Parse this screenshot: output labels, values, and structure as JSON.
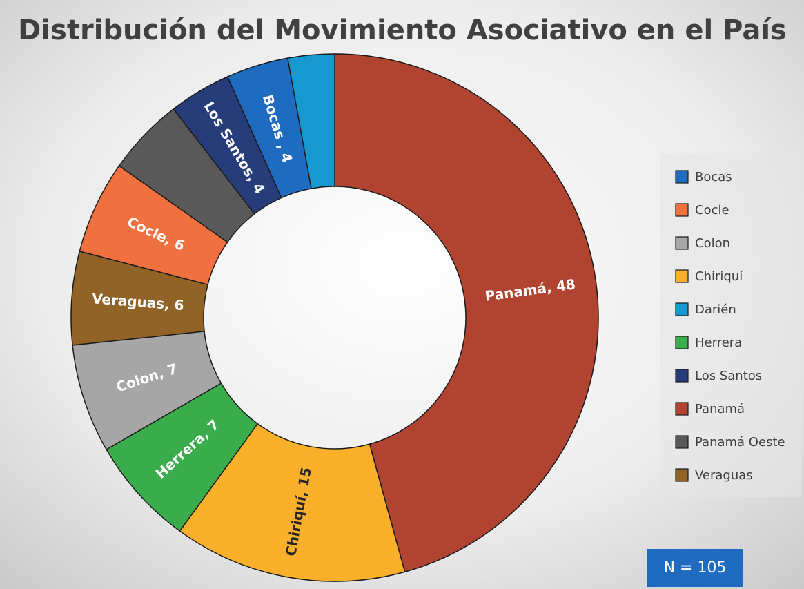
{
  "chart_data": {
    "type": "donut",
    "title": "Distribución del Movimiento Asociativo en el País",
    "categories": [
      "Panamá",
      "Chiriquí",
      "Herrera",
      "Colon",
      "Veraguas",
      "Cocle",
      "Panamá Oeste",
      "Los Santos",
      "Bocas",
      "Darién"
    ],
    "values": [
      48,
      15,
      7,
      7,
      6,
      6,
      5,
      4,
      4,
      3
    ],
    "value_labels": [
      "Panamá, 48",
      "Chiriquí, 15",
      "Herrera, 7",
      "Colon, 7",
      "Veraguas, 6",
      "Cocle, 6",
      null,
      "Los Santos, 4",
      "Bocas , 4",
      null
    ],
    "colors": [
      "#b04430",
      "#fbb02c",
      "#3aac4c",
      "#a6a6a6",
      "#926327",
      "#f07040",
      "#595959",
      "#273d7a",
      "#1f6bbf",
      "#1799d0"
    ],
    "label_colors": [
      "#ffffff",
      "#262626",
      "#ffffff",
      "#ffffff",
      "#ffffff",
      "#ffffff",
      "#ffffff",
      "#ffffff",
      "#ffffff",
      "#ffffff"
    ],
    "legend": {
      "position": "right",
      "entries": [
        "Bocas",
        "Cocle",
        "Colon",
        "Chiriquí",
        "Darién",
        "Herrera",
        "Los Santos",
        "Panamá",
        "Panamá Oeste",
        "Veraguas"
      ]
    },
    "annotation": "N = 105"
  }
}
